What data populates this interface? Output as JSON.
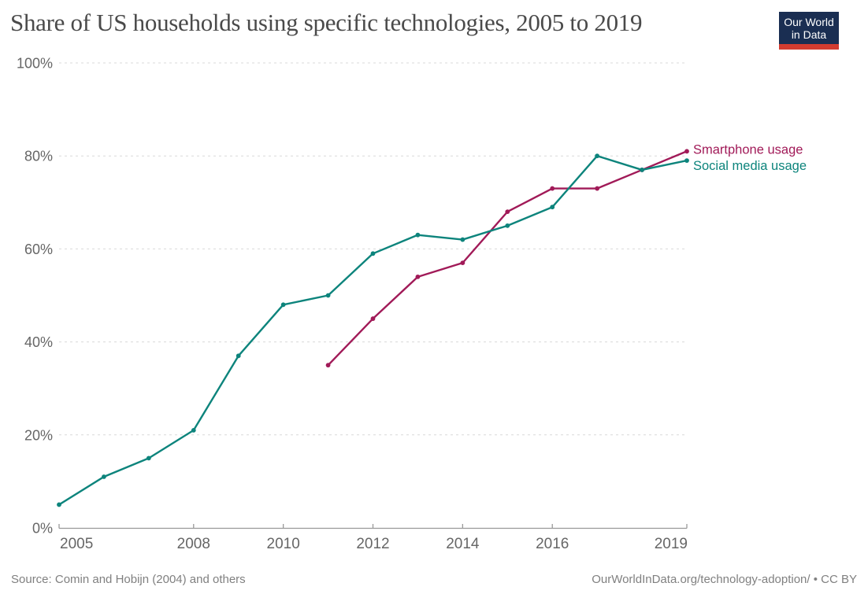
{
  "header": {
    "logo": {
      "line1": "Our World",
      "line2": "in Data",
      "background_color": "#1a2e52",
      "bar_color": "#d23c30"
    }
  },
  "chart_data": {
    "type": "line",
    "title": "Share of US households using specific technologies, 2005 to 2019",
    "xlabel": "",
    "ylabel": "",
    "xlim": [
      2005,
      2019
    ],
    "ylim": [
      0,
      100
    ],
    "x_ticks": [
      2005,
      2008,
      2010,
      2012,
      2014,
      2016,
      2019
    ],
    "y_ticks": [
      0,
      20,
      40,
      60,
      80,
      100
    ],
    "y_tick_suffix": "%",
    "grid": "horizontal-dashed",
    "legend_position": "end-of-line-labels-right",
    "series": [
      {
        "name": "Smartphone usage",
        "color": "#a11a58",
        "x": [
          2011,
          2012,
          2013,
          2014,
          2015,
          2016,
          2017,
          2018,
          2019
        ],
        "values": [
          35,
          45,
          54,
          57,
          68,
          73,
          73,
          77,
          81
        ]
      },
      {
        "name": "Social media usage",
        "color": "#0d847c",
        "x": [
          2005,
          2006,
          2007,
          2008,
          2009,
          2010,
          2011,
          2012,
          2013,
          2014,
          2015,
          2016,
          2017,
          2018,
          2019
        ],
        "values": [
          5,
          11,
          15,
          21,
          37,
          48,
          50,
          59,
          63,
          62,
          65,
          69,
          80,
          77,
          79
        ]
      }
    ]
  },
  "footer": {
    "source": "Source: Comin and Hobijn (2004) and others",
    "attribution": "OurWorldInData.org/technology-adoption/ • CC BY"
  }
}
